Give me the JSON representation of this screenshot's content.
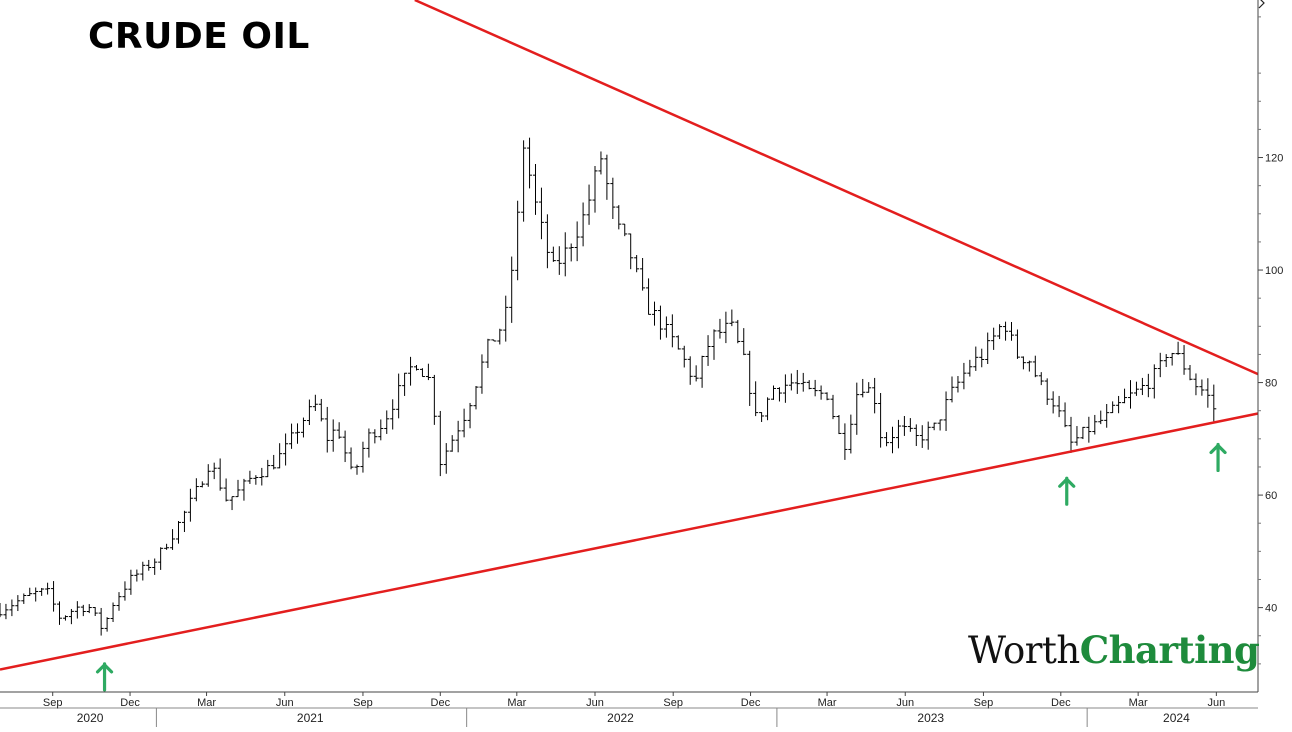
{
  "title": "CRUDE OIL",
  "logo": {
    "word1": "Worth",
    "word2": "Charting",
    "accent_color": "#1e8b3c"
  },
  "colors": {
    "trendline": "#e31e1e",
    "arrow": "#2eaa62",
    "bars": "#000000"
  },
  "chart_data": {
    "type": "ohlc",
    "title": "CRUDE OIL",
    "xlabel": "",
    "ylabel": "",
    "frequency": "weekly",
    "x_range": [
      "2020-07-01",
      "2024-07-20"
    ],
    "ylim": [
      25,
      148
    ],
    "y_ticks": [
      40,
      60,
      80,
      100,
      120
    ],
    "grid": false,
    "y_axis_side": "right",
    "x_month_ticks": [
      {
        "label": "Sep",
        "date": "2020-09-01"
      },
      {
        "label": "Dec",
        "date": "2020-12-01"
      },
      {
        "label": "Mar",
        "date": "2021-03-01"
      },
      {
        "label": "Jun",
        "date": "2021-06-01"
      },
      {
        "label": "Sep",
        "date": "2021-09-01"
      },
      {
        "label": "Dec",
        "date": "2021-12-01"
      },
      {
        "label": "Mar",
        "date": "2022-03-01"
      },
      {
        "label": "Jun",
        "date": "2022-06-01"
      },
      {
        "label": "Sep",
        "date": "2022-09-01"
      },
      {
        "label": "Dec",
        "date": "2022-12-01"
      },
      {
        "label": "Mar",
        "date": "2023-03-01"
      },
      {
        "label": "Jun",
        "date": "2023-06-01"
      },
      {
        "label": "Sep",
        "date": "2023-09-01"
      },
      {
        "label": "Dec",
        "date": "2023-12-01"
      },
      {
        "label": "Mar",
        "date": "2024-03-01"
      },
      {
        "label": "Jun",
        "date": "2024-06-01"
      }
    ],
    "x_year_labels": [
      {
        "label": "2020",
        "date": "2020-10-15"
      },
      {
        "label": "2021",
        "date": "2021-07-01"
      },
      {
        "label": "2022",
        "date": "2022-07-01"
      },
      {
        "label": "2023",
        "date": "2023-07-01"
      },
      {
        "label": "2024",
        "date": "2024-04-15"
      }
    ],
    "x_year_separators": [
      "2021-01-01",
      "2022-01-01",
      "2023-01-01",
      "2024-01-01"
    ],
    "series": [
      {
        "key": [
          [
            "2020-07-01",
            39.5
          ],
          [
            "2020-07-20",
            41
          ],
          [
            "2020-08-10",
            42.5
          ],
          [
            "2020-08-25",
            43
          ],
          [
            "2020-09-10",
            38
          ],
          [
            "2020-09-28",
            40
          ],
          [
            "2020-10-15",
            40
          ],
          [
            "2020-10-30",
            36
          ],
          [
            "2020-11-10",
            40.5
          ],
          [
            "2020-12-01",
            45
          ],
          [
            "2020-12-31",
            48.5
          ],
          [
            "2021-01-20",
            53
          ],
          [
            "2021-02-15",
            60
          ],
          [
            "2021-03-05",
            66
          ],
          [
            "2021-03-25",
            59
          ],
          [
            "2021-04-10",
            61
          ],
          [
            "2021-04-25",
            63.5
          ],
          [
            "2021-05-15",
            65
          ],
          [
            "2021-06-01",
            68
          ],
          [
            "2021-06-25",
            74
          ],
          [
            "2021-07-08",
            76
          ],
          [
            "2021-07-20",
            70
          ],
          [
            "2021-08-02",
            72
          ],
          [
            "2021-08-20",
            63
          ],
          [
            "2021-09-05",
            70
          ],
          [
            "2021-09-25",
            73
          ],
          [
            "2021-10-15",
            79
          ],
          [
            "2021-11-01",
            84
          ],
          [
            "2021-11-20",
            80
          ],
          [
            "2021-12-01",
            66
          ],
          [
            "2021-12-15",
            70
          ],
          [
            "2022-01-01",
            75
          ],
          [
            "2022-01-25",
            86
          ],
          [
            "2022-02-15",
            91
          ],
          [
            "2022-03-01",
            107
          ],
          [
            "2022-03-08",
            123
          ],
          [
            "2022-03-25",
            110
          ],
          [
            "2022-04-12",
            100
          ],
          [
            "2022-05-01",
            104
          ],
          [
            "2022-05-20",
            110
          ],
          [
            "2022-06-08",
            120
          ],
          [
            "2022-06-25",
            108
          ],
          [
            "2022-07-10",
            104
          ],
          [
            "2022-07-30",
            94
          ],
          [
            "2022-08-20",
            90
          ],
          [
            "2022-09-10",
            85
          ],
          [
            "2022-09-27",
            80
          ],
          [
            "2022-10-15",
            88
          ],
          [
            "2022-11-08",
            90
          ],
          [
            "2022-11-25",
            83
          ],
          [
            "2022-12-08",
            73
          ],
          [
            "2022-12-28",
            79
          ],
          [
            "2023-01-20",
            80
          ],
          [
            "2023-02-10",
            78
          ],
          [
            "2023-03-01",
            78
          ],
          [
            "2023-03-20",
            68
          ],
          [
            "2023-04-08",
            80
          ],
          [
            "2023-04-25",
            78
          ],
          [
            "2023-05-05",
            69
          ],
          [
            "2023-05-25",
            72
          ],
          [
            "2023-06-15",
            70
          ],
          [
            "2023-07-05",
            72
          ],
          [
            "2023-07-25",
            78
          ],
          [
            "2023-08-15",
            83
          ],
          [
            "2023-09-01",
            85
          ],
          [
            "2023-09-25",
            91
          ],
          [
            "2023-10-10",
            85
          ],
          [
            "2023-10-25",
            84
          ],
          [
            "2023-11-05",
            80
          ],
          [
            "2023-11-25",
            76
          ],
          [
            "2023-12-12",
            69
          ],
          [
            "2024-01-05",
            72
          ],
          [
            "2024-01-25",
            74
          ],
          [
            "2024-02-15",
            77
          ],
          [
            "2024-03-05",
            79
          ],
          [
            "2024-03-25",
            82
          ],
          [
            "2024-04-05",
            86
          ],
          [
            "2024-04-20",
            84
          ],
          [
            "2024-05-05",
            80
          ],
          [
            "2024-05-20",
            78
          ],
          [
            "2024-06-03",
            74
          ]
        ],
        "name": ""
      }
    ],
    "trendlines": [
      {
        "name": "resistance",
        "from": {
          "date": "2021-11-01",
          "value": 148
        },
        "to": {
          "date": "2024-07-20",
          "value": 81.5
        }
      },
      {
        "name": "support",
        "from": {
          "date": "2020-07-01",
          "value": 29
        },
        "to": {
          "date": "2024-07-20",
          "value": 74.5
        }
      }
    ],
    "annotations": [
      {
        "type": "arrow-up",
        "date": "2020-11-01",
        "value": 30
      },
      {
        "type": "arrow-up",
        "date": "2023-12-08",
        "value": 63
      },
      {
        "type": "arrow-up",
        "date": "2024-06-03",
        "value": 69
      }
    ]
  }
}
